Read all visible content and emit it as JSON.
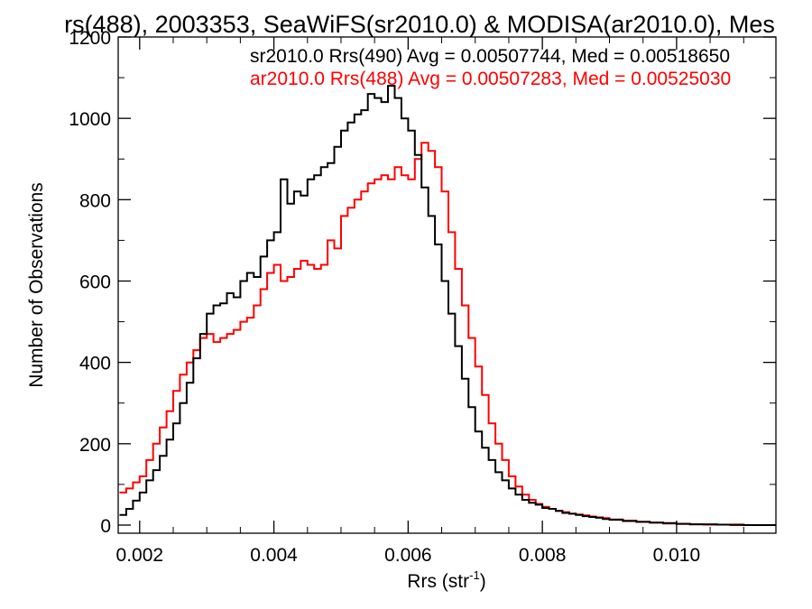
{
  "chart_data": {
    "type": "line",
    "title": "rs(488), 2003353, SeaWiFS(sr2010.0) & MODISA(ar2010.0), Mes",
    "xlabel": "Rrs (str",
    "xlabel_sup": "-1",
    "xlabel_close": ")",
    "ylabel": "Number of Observations",
    "xlim": [
      0.00168,
      0.01148
    ],
    "ylim": [
      -20,
      1200
    ],
    "xticks": [
      0.002,
      0.004,
      0.006,
      0.008,
      0.01
    ],
    "xtick_labels": [
      "0.002",
      "0.004",
      "0.006",
      "0.008",
      "0.010"
    ],
    "yticks": [
      0,
      200,
      400,
      600,
      800,
      1000,
      1200
    ],
    "ytick_labels": [
      "0",
      "200",
      "400",
      "600",
      "800",
      "1000",
      "1200"
    ],
    "grid": false,
    "legend_placement": "top-right",
    "legend": [
      {
        "text": "sr2010.0 Rrs(490) Avg = 0.00507744, Med = 0.00518650",
        "color": "#000000"
      },
      {
        "text": "ar2010.0 Rrs(488) Avg = 0.00507283, Med = 0.00525030",
        "color": "#ff0000"
      }
    ],
    "series": [
      {
        "color": "#000000",
        "x": [
          0.0017,
          0.0018,
          0.0019,
          0.002,
          0.0021,
          0.0022,
          0.0023,
          0.0024,
          0.0025,
          0.0026,
          0.0027,
          0.0028,
          0.0029,
          0.003,
          0.0031,
          0.0032,
          0.0033,
          0.0034,
          0.0035,
          0.0036,
          0.0037,
          0.0038,
          0.0039,
          0.004,
          0.0041,
          0.0042,
          0.0043,
          0.0044,
          0.0045,
          0.0046,
          0.0047,
          0.0048,
          0.0049,
          0.005,
          0.0051,
          0.0052,
          0.0053,
          0.0054,
          0.0055,
          0.0056,
          0.0057,
          0.0058,
          0.0059,
          0.006,
          0.0061,
          0.0062,
          0.0063,
          0.0064,
          0.0065,
          0.0066,
          0.0067,
          0.0068,
          0.0069,
          0.007,
          0.0071,
          0.0072,
          0.0073,
          0.0074,
          0.0075,
          0.0076,
          0.0077,
          0.0078,
          0.0079,
          0.008,
          0.0081,
          0.0082,
          0.0083,
          0.0084,
          0.0085,
          0.0086,
          0.0087,
          0.0088,
          0.0089,
          0.009,
          0.0092,
          0.0094,
          0.0096,
          0.0098,
          0.01,
          0.0102,
          0.0104,
          0.0106,
          0.0108,
          0.011,
          0.0112,
          0.0114
        ],
        "values": [
          25,
          40,
          60,
          80,
          110,
          135,
          170,
          210,
          250,
          300,
          350,
          410,
          470,
          520,
          540,
          545,
          570,
          560,
          600,
          620,
          610,
          660,
          700,
          720,
          850,
          790,
          820,
          810,
          850,
          860,
          880,
          890,
          930,
          970,
          990,
          1010,
          1020,
          1060,
          1050,
          1040,
          1080,
          1050,
          1000,
          970,
          910,
          830,
          760,
          690,
          600,
          520,
          440,
          360,
          290,
          230,
          190,
          160,
          130,
          110,
          90,
          75,
          62,
          55,
          50,
          42,
          40,
          35,
          30,
          28,
          25,
          22,
          20,
          18,
          15,
          13,
          10,
          8,
          6,
          5,
          3,
          2,
          2,
          1,
          1,
          0,
          0,
          0
        ]
      },
      {
        "color": "#ff0000",
        "x": [
          0.0017,
          0.0018,
          0.0019,
          0.002,
          0.0021,
          0.0022,
          0.0023,
          0.0024,
          0.0025,
          0.0026,
          0.0027,
          0.0028,
          0.0029,
          0.003,
          0.0031,
          0.0032,
          0.0033,
          0.0034,
          0.0035,
          0.0036,
          0.0037,
          0.0038,
          0.0039,
          0.004,
          0.0041,
          0.0042,
          0.0043,
          0.0044,
          0.0045,
          0.0046,
          0.0047,
          0.0048,
          0.0049,
          0.005,
          0.0051,
          0.0052,
          0.0053,
          0.0054,
          0.0055,
          0.0056,
          0.0057,
          0.0058,
          0.0059,
          0.006,
          0.0061,
          0.0062,
          0.0063,
          0.0064,
          0.0065,
          0.0066,
          0.0067,
          0.0068,
          0.0069,
          0.007,
          0.0071,
          0.0072,
          0.0073,
          0.0074,
          0.0075,
          0.0076,
          0.0077,
          0.0078,
          0.0079,
          0.008,
          0.0081,
          0.0082,
          0.0083,
          0.0084,
          0.0085,
          0.0086,
          0.0087,
          0.0088,
          0.0089,
          0.009,
          0.0092,
          0.0094,
          0.0096,
          0.0098,
          0.01,
          0.0102,
          0.0104,
          0.0106,
          0.0108,
          0.011,
          0.0112,
          0.0114
        ],
        "values": [
          80,
          90,
          105,
          120,
          160,
          200,
          240,
          280,
          330,
          370,
          400,
          430,
          460,
          470,
          450,
          460,
          470,
          480,
          500,
          510,
          540,
          580,
          620,
          640,
          600,
          610,
          630,
          650,
          640,
          630,
          640,
          700,
          680,
          760,
          780,
          800,
          820,
          840,
          850,
          860,
          850,
          880,
          860,
          850,
          900,
          940,
          920,
          880,
          820,
          720,
          630,
          540,
          460,
          390,
          320,
          250,
          200,
          160,
          120,
          95,
          75,
          62,
          52,
          45,
          40,
          35,
          32,
          28,
          26,
          24,
          21,
          19,
          17,
          14,
          11,
          8,
          6,
          4,
          3,
          2,
          1,
          1,
          0,
          0,
          0,
          0
        ]
      }
    ]
  }
}
